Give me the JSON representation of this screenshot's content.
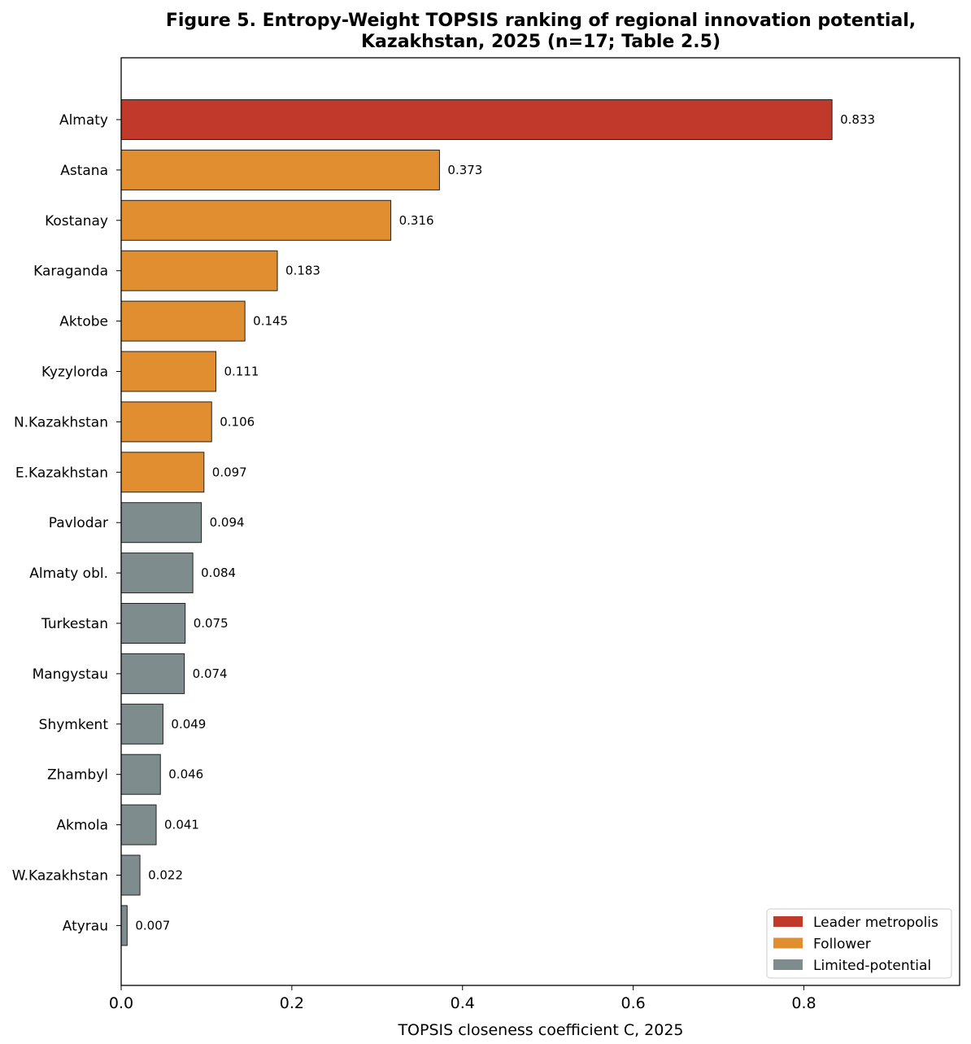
{
  "chart_data": {
    "type": "bar",
    "orientation": "horizontal",
    "title_lines": [
      "Figure 5. Entropy-Weight TOPSIS ranking of regional innovation potential,",
      "Kazakhstan, 2025 (n=17; Table 2.5)"
    ],
    "xlabel": "TOPSIS closeness coefficient C, 2025",
    "ylabel": "",
    "xlim": [
      0,
      0.9825
    ],
    "xticks": [
      0.0,
      0.2,
      0.4,
      0.6,
      0.8
    ],
    "xtick_labels": [
      "0.0",
      "0.2",
      "0.4",
      "0.6",
      "0.8"
    ],
    "grid": false,
    "legend_position": "bottom-right",
    "groups": [
      {
        "key": "leader",
        "name": "Leader metropolis",
        "color": "#c0392b"
      },
      {
        "key": "follower",
        "name": "Follower",
        "color": "#e08e2f"
      },
      {
        "key": "limited",
        "name": "Limited-potential",
        "color": "#7f8c8d"
      }
    ],
    "bars": [
      {
        "category": "Almaty",
        "value": 0.833,
        "label": "0.833",
        "group": "leader"
      },
      {
        "category": "Astana",
        "value": 0.373,
        "label": "0.373",
        "group": "follower"
      },
      {
        "category": "Kostanay",
        "value": 0.316,
        "label": "0.316",
        "group": "follower"
      },
      {
        "category": "Karaganda",
        "value": 0.183,
        "label": "0.183",
        "group": "follower"
      },
      {
        "category": "Aktobe",
        "value": 0.145,
        "label": "0.145",
        "group": "follower"
      },
      {
        "category": "Kyzylorda",
        "value": 0.111,
        "label": "0.111",
        "group": "follower"
      },
      {
        "category": "N.Kazakhstan",
        "value": 0.106,
        "label": "0.106",
        "group": "follower"
      },
      {
        "category": "E.Kazakhstan",
        "value": 0.097,
        "label": "0.097",
        "group": "follower"
      },
      {
        "category": "Pavlodar",
        "value": 0.094,
        "label": "0.094",
        "group": "limited"
      },
      {
        "category": "Almaty obl.",
        "value": 0.084,
        "label": "0.084",
        "group": "limited"
      },
      {
        "category": "Turkestan",
        "value": 0.075,
        "label": "0.075",
        "group": "limited"
      },
      {
        "category": "Mangystau",
        "value": 0.074,
        "label": "0.074",
        "group": "limited"
      },
      {
        "category": "Shymkent",
        "value": 0.049,
        "label": "0.049",
        "group": "limited"
      },
      {
        "category": "Zhambyl",
        "value": 0.046,
        "label": "0.046",
        "group": "limited"
      },
      {
        "category": "Akmola",
        "value": 0.041,
        "label": "0.041",
        "group": "limited"
      },
      {
        "category": "W.Kazakhstan",
        "value": 0.022,
        "label": "0.022",
        "group": "limited"
      },
      {
        "category": "Atyrau",
        "value": 0.007,
        "label": "0.007",
        "group": "limited"
      }
    ]
  }
}
